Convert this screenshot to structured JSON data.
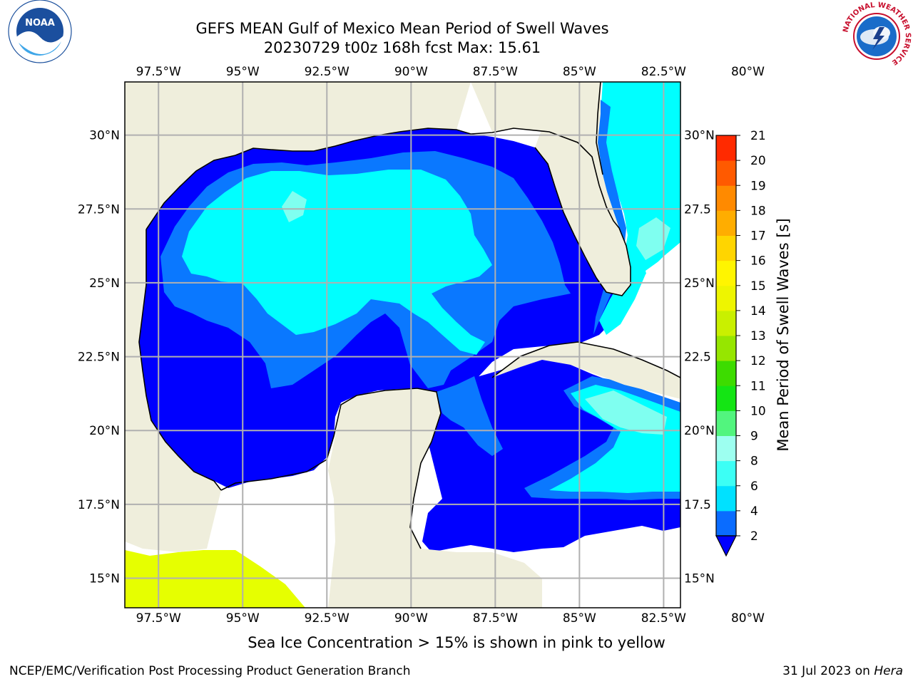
{
  "title": {
    "line1": "GEFS MEAN Gulf of Mexico Mean Period of Swell Waves",
    "line2": "20230729 t00z 168h fcst   Max: 15.61"
  },
  "map": {
    "lon_range": [
      -98.5,
      -82.0
    ],
    "lat_range": [
      14.0,
      31.8
    ],
    "lon_ticks": [
      {
        "value": -97.5,
        "label": "97.5°W"
      },
      {
        "value": -95.0,
        "label": "95°W"
      },
      {
        "value": -92.5,
        "label": "92.5°W"
      },
      {
        "value": -90.0,
        "label": "90°W"
      },
      {
        "value": -87.5,
        "label": "87.5°W"
      },
      {
        "value": -85.0,
        "label": "85°W"
      },
      {
        "value": -82.5,
        "label": "82.5°W"
      },
      {
        "value": -80.0,
        "label": "80°W"
      }
    ],
    "lat_ticks": [
      {
        "value": 30.0,
        "label": "30°N",
        "right_label": "30°N"
      },
      {
        "value": 27.5,
        "label": "27.5°N",
        "right_label": "27.5"
      },
      {
        "value": 25.0,
        "label": "25°N",
        "right_label": "25°N"
      },
      {
        "value": 22.5,
        "label": "22.5°N",
        "right_label": "22.5"
      },
      {
        "value": 20.0,
        "label": "20°N",
        "right_label": "20°N"
      },
      {
        "value": 17.5,
        "label": "17.5°N",
        "right_label": "17.5"
      },
      {
        "value": 15.0,
        "label": "15°N",
        "right_label": "15°N"
      }
    ],
    "colors": {
      "land": "#efeedc",
      "ocean_2_4": "#0000ff",
      "ocean_4_6": "#0a78ff",
      "ocean_6_8": "#00ffff",
      "ocean_8_9": "#7ffff0",
      "ice": "#e6ff00",
      "grid": "#b0b0b0"
    }
  },
  "colorbar": {
    "label": "Mean Period of Swell Waves [s]",
    "ticks": [
      "2",
      "4",
      "6",
      "8",
      "9",
      "10",
      "11",
      "12",
      "13",
      "14",
      "15",
      "16",
      "17",
      "18",
      "19",
      "20",
      "21"
    ],
    "colors": [
      "#0a6cff",
      "#00e1ff",
      "#3cfff5",
      "#9dfff0",
      "#52f57e",
      "#14e514",
      "#3ddc00",
      "#96e600",
      "#c9f000",
      "#eef500",
      "#fff500",
      "#ffd500",
      "#ffad00",
      "#ff8a00",
      "#ff5a00",
      "#ff2a00"
    ],
    "extend_color": "#0000ff"
  },
  "footer": {
    "ice_note": "Sea Ice Concentration > 15% is shown in pink to yellow",
    "credit": "NCEP/EMC/Verification Post Processing Product Generation Branch",
    "date_prefix": "31 Jul 2023 on ",
    "date_host": "Hera"
  },
  "logos": {
    "noaa_text": "NOAA",
    "nws_text": "NATIONAL WEATHER SERVICE"
  }
}
